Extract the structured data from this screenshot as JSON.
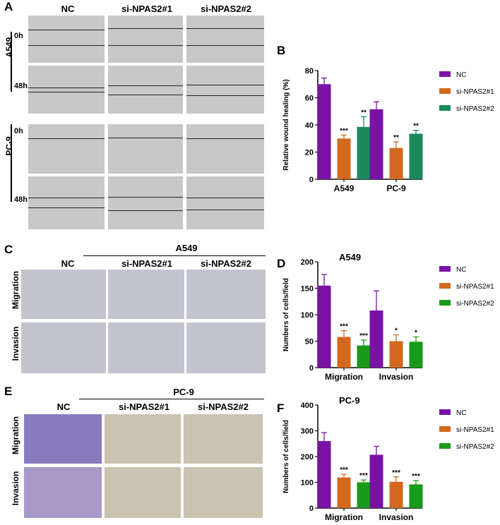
{
  "panels": {
    "A": "A",
    "B": "B",
    "C": "C",
    "D": "D",
    "E": "E",
    "F": "F"
  },
  "scratch": {
    "columns": [
      "NC",
      "si-NPAS2#1",
      "si-NPAS2#2"
    ],
    "cells": [
      {
        "line": "A549",
        "time_top": "0h",
        "time_bottom": "48h"
      },
      {
        "line": "PC-9",
        "time_top": "0h",
        "time_bottom": "48h"
      }
    ]
  },
  "transwell_C": {
    "group": "A549",
    "columns": [
      "NC",
      "si-NPAS2#1",
      "si-NPAS2#2"
    ],
    "rows": [
      "Migration",
      "Invasion"
    ]
  },
  "transwell_E": {
    "group": "PC-9",
    "columns": [
      "NC",
      "si-NPAS2#1",
      "si-NPAS2#2"
    ],
    "rows": [
      "Migration",
      "Invasion"
    ]
  },
  "colors": {
    "NC": "#7a12a6",
    "si1_orange": "#d2691e",
    "si2_teal": "#1b8a5a",
    "si2_green": "#1a9a1a"
  },
  "chart_data": [
    {
      "id": "B",
      "type": "bar",
      "title": "",
      "ylabel": "Relative wound healing (%)",
      "ylim": [
        0,
        80
      ],
      "yticks": [
        0,
        20,
        40,
        60,
        80
      ],
      "categories": [
        "A549",
        "PC-9"
      ],
      "series": [
        {
          "name": "NC",
          "color": "#7a12a6",
          "values": [
            70,
            51.5
          ],
          "err": [
            4.5,
            5.5
          ],
          "sig": [
            "",
            ""
          ]
        },
        {
          "name": "si-NPAS2#1",
          "color": "#d2691e",
          "values": [
            30,
            23
          ],
          "err": [
            2.5,
            4.5
          ],
          "sig": [
            "***",
            "**"
          ]
        },
        {
          "name": "si-NPAS2#2",
          "color": "#1b8a5a",
          "values": [
            38.5,
            33.5
          ],
          "err": [
            7.5,
            2.5
          ],
          "sig": [
            "**",
            "**"
          ]
        }
      ]
    },
    {
      "id": "D",
      "type": "bar",
      "title": "A549",
      "ylabel": "Numbers of cells/field",
      "ylim": [
        0,
        200
      ],
      "yticks": [
        0,
        50,
        100,
        150,
        200
      ],
      "categories": [
        "Migration",
        "Invasion"
      ],
      "series": [
        {
          "name": "NC",
          "color": "#7a12a6",
          "values": [
            155,
            108
          ],
          "err": [
            21,
            37
          ],
          "sig": [
            "",
            ""
          ]
        },
        {
          "name": "si-NPAS2#1",
          "color": "#d2691e",
          "values": [
            58,
            50
          ],
          "err": [
            12,
            12
          ],
          "sig": [
            "***",
            "*"
          ]
        },
        {
          "name": "si-NPAS2#2",
          "color": "#1a9a1a",
          "values": [
            42,
            49
          ],
          "err": [
            10,
            9
          ],
          "sig": [
            "***",
            "*"
          ]
        }
      ]
    },
    {
      "id": "F",
      "type": "bar",
      "title": "PC-9",
      "ylabel": "Numbers of cells/field",
      "ylim": [
        0,
        400
      ],
      "yticks": [
        0,
        100,
        200,
        300,
        400
      ],
      "categories": [
        "Migration",
        "Invasion"
      ],
      "series": [
        {
          "name": "NC",
          "color": "#7a12a6",
          "values": [
            260,
            207
          ],
          "err": [
            33,
            33
          ],
          "sig": [
            "",
            ""
          ]
        },
        {
          "name": "si-NPAS2#1",
          "color": "#d2691e",
          "values": [
            119,
            102
          ],
          "err": [
            12,
            19
          ],
          "sig": [
            "***",
            "***"
          ]
        },
        {
          "name": "si-NPAS2#2",
          "color": "#1a9a1a",
          "values": [
            100,
            92
          ],
          "err": [
            9,
            15
          ],
          "sig": [
            "***",
            "***"
          ]
        }
      ]
    }
  ]
}
